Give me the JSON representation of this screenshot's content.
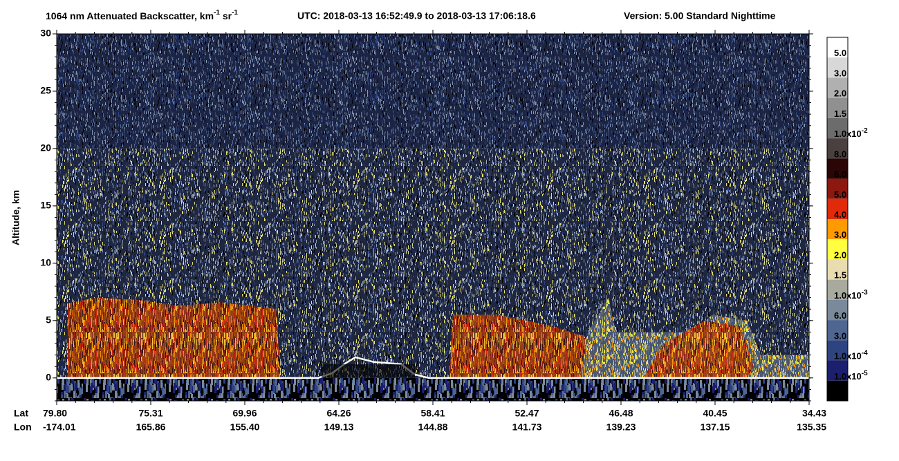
{
  "chart_data": {
    "type": "heatmap",
    "title": [
      "1064 nm Attenuated Backscatter, km",
      "-1",
      " sr",
      "-1"
    ],
    "time_info": "UTC:  2018-03-13 16:52:49.9  to  2018-03-13 17:06:18.6",
    "version_info": "Version: 5.00  Standard  Nighttime",
    "ylabel": "Altitude, km",
    "ylim": [
      -2,
      30
    ],
    "yticks": [
      0,
      5,
      10,
      15,
      20,
      25,
      30
    ],
    "x_row_labels": [
      "Lat",
      "Lon"
    ],
    "lat": [
      "79.80",
      "75.31",
      "69.96",
      "64.26",
      "58.41",
      "52.47",
      "46.48",
      "40.45",
      "34.43"
    ],
    "lon": [
      "-174.01",
      "165.86",
      "155.40",
      "149.13",
      "144.88",
      "141.73",
      "139.23",
      "137.15",
      "135.35"
    ],
    "colorbar": {
      "colors": [
        "#ffffff",
        "#d8d8d8",
        "#b0b0b0",
        "#909090",
        "#6c6c6c",
        "#4a4040",
        "#2a0606",
        "#8c1810",
        "#e02a0a",
        "#ff9a00",
        "#ffff40",
        "#e8dcb0",
        "#a8aa9e",
        "#7a8a9a",
        "#4e6690",
        "#2e4480",
        "#1c1e6e",
        "#000000"
      ],
      "labels": [
        {
          "text": "5.0"
        },
        {
          "text": "3.0"
        },
        {
          "text": "2.0"
        },
        {
          "text": "1.5"
        },
        {
          "text": "1.0x10",
          "exponent": "-2"
        },
        {
          "text": "8.0"
        },
        {
          "text": "6.0"
        },
        {
          "text": "5.0"
        },
        {
          "text": "4.0"
        },
        {
          "text": "3.0"
        },
        {
          "text": "2.0"
        },
        {
          "text": "1.5"
        },
        {
          "text": "1.0x10",
          "exponent": "-3"
        },
        {
          "text": "6.0"
        },
        {
          "text": "3.0"
        },
        {
          "text": "1.0x10",
          "exponent": "-4"
        },
        {
          "text": "1.0x10",
          "exponent": "-5"
        }
      ]
    }
  }
}
